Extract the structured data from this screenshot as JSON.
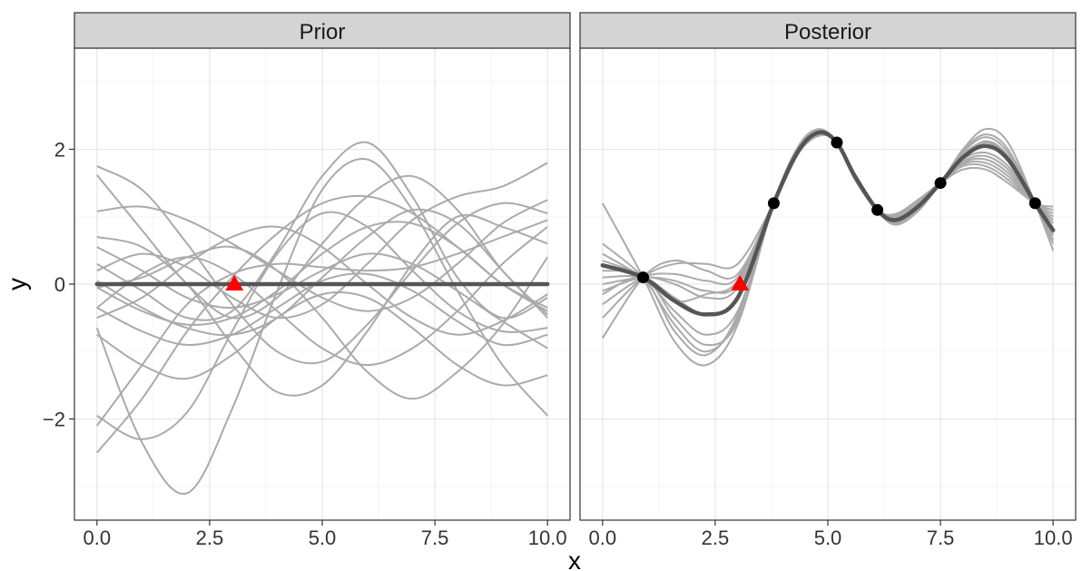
{
  "chart_data": {
    "type": "line",
    "xlabel": "x",
    "ylabel": "y",
    "xlim": [
      -0.5,
      10.5
    ],
    "ylim": [
      -3.5,
      3.5
    ],
    "x_ticks": [
      {
        "value": 0.0,
        "label": "0.0"
      },
      {
        "value": 2.5,
        "label": "2.5"
      },
      {
        "value": 5.0,
        "label": "5.0"
      },
      {
        "value": 7.5,
        "label": "7.5"
      },
      {
        "value": 10.0,
        "label": "10.0"
      }
    ],
    "y_ticks": [
      {
        "value": -2,
        "label": "−2"
      },
      {
        "value": 0,
        "label": "0"
      },
      {
        "value": 2,
        "label": "2"
      }
    ],
    "grid": true,
    "colors": {
      "samples": "#aaaaaa",
      "mean": "#555555",
      "candidate": "#ff0000",
      "observations": "#000000",
      "strip": "#d4d4d4"
    },
    "panels": [
      {
        "strip": "Prior",
        "sample_x": [
          0,
          1,
          2,
          3,
          4,
          5,
          6,
          7,
          8,
          9,
          10
        ],
        "samples": [
          [
            1.75,
            1.4,
            0.6,
            -0.3,
            -1.0,
            -1.15,
            -0.6,
            0.2,
            0.9,
            1.2,
            1.05
          ],
          [
            1.62,
            0.8,
            0.0,
            -0.5,
            -0.2,
            0.6,
            1.3,
            1.6,
            1.1,
            0.2,
            -0.45
          ],
          [
            1.08,
            1.15,
            0.95,
            0.6,
            0.2,
            -0.2,
            -0.4,
            -0.2,
            0.3,
            0.9,
            1.25
          ],
          [
            0.7,
            0.55,
            0.0,
            -0.9,
            -1.6,
            -1.5,
            -0.7,
            0.3,
            1.0,
            0.85,
            0.6
          ],
          [
            0.3,
            -0.1,
            -0.5,
            -0.4,
            0.5,
            1.6,
            2.1,
            1.3,
            0.1,
            -0.5,
            -0.2
          ],
          [
            0.2,
            0.45,
            0.25,
            -0.2,
            -0.5,
            -0.3,
            0.3,
            0.95,
            1.3,
            1.45,
            1.8
          ],
          [
            0.05,
            -0.35,
            -0.65,
            -0.75,
            -0.5,
            0.1,
            0.7,
            1.1,
            0.9,
            0.2,
            -0.5
          ],
          [
            -0.05,
            0.1,
            0.4,
            0.55,
            0.2,
            -0.5,
            -1.3,
            -1.7,
            -1.3,
            -0.6,
            0.4
          ],
          [
            -0.35,
            -0.7,
            -0.9,
            -0.75,
            -0.35,
            0.05,
            0.15,
            -0.1,
            -0.55,
            -0.9,
            -0.75
          ],
          [
            -0.5,
            -0.2,
            0.3,
            0.7,
            0.85,
            0.55,
            0.0,
            -0.5,
            -0.75,
            -0.55,
            -0.15
          ],
          [
            -0.75,
            -1.2,
            -1.4,
            -1.05,
            -0.5,
            -0.15,
            -0.2,
            -0.65,
            -1.2,
            -1.5,
            -1.35
          ],
          [
            -0.35,
            0.15,
            0.4,
            0.15,
            -0.4,
            -0.95,
            -1.2,
            -0.95,
            -0.4,
            0.3,
            0.85
          ],
          [
            -1.95,
            -2.3,
            -1.9,
            -0.7,
            0.45,
            1.05,
            0.85,
            0.2,
            -0.4,
            -0.7,
            -0.65
          ],
          [
            -2.1,
            -1.2,
            -0.3,
            0.15,
            0.3,
            0.25,
            0.2,
            0.25,
            0.45,
            0.7,
            0.95
          ],
          [
            -2.5,
            -1.7,
            -0.7,
            0.1,
            0.75,
            1.2,
            1.3,
            1.05,
            0.55,
            0.0,
            -0.4
          ],
          [
            -0.65,
            -2.35,
            -3.1,
            -1.85,
            -0.1,
            1.4,
            1.85,
            1.1,
            -0.1,
            -1.2,
            -1.95
          ],
          [
            -0.05,
            -0.4,
            -0.6,
            -0.5,
            -0.1,
            0.45,
            0.85,
            0.9,
            0.55,
            0.0,
            -0.35
          ],
          [
            0.55,
            0.2,
            -0.2,
            -0.35,
            -0.15,
            0.2,
            0.45,
            0.3,
            -0.1,
            -0.55,
            -0.95
          ]
        ],
        "mean_x": [
          0,
          10
        ],
        "mean_y": [
          0,
          0
        ],
        "candidate": {
          "x": 3.05,
          "y": 0.0
        },
        "observations": []
      },
      {
        "strip": "Posterior",
        "sample_x": [
          0,
          0.9,
          1.6,
          2.3,
          3.0,
          3.8,
          4.35,
          4.8,
          5.2,
          5.6,
          6.1,
          6.5,
          7.0,
          7.5,
          8.0,
          8.5,
          9.0,
          9.6,
          10.0
        ],
        "samples": [
          [
            1.2,
            0.1,
            -0.85,
            -1.2,
            -0.6,
            1.2,
            2.05,
            2.3,
            2.1,
            1.6,
            1.1,
            0.9,
            1.1,
            1.5,
            2.0,
            2.3,
            2.1,
            1.2,
            0.5
          ],
          [
            0.6,
            0.1,
            -0.6,
            -1.0,
            -0.5,
            1.2,
            2.0,
            2.28,
            2.1,
            1.62,
            1.1,
            0.92,
            1.12,
            1.5,
            1.95,
            2.18,
            1.95,
            1.2,
            0.65
          ],
          [
            0.35,
            0.1,
            -0.4,
            -0.75,
            -0.4,
            1.2,
            1.98,
            2.26,
            2.1,
            1.6,
            1.1,
            0.95,
            1.15,
            1.5,
            1.9,
            2.05,
            1.85,
            1.2,
            0.8
          ],
          [
            0.1,
            0.1,
            -0.2,
            -0.45,
            -0.2,
            1.2,
            1.97,
            2.25,
            2.1,
            1.58,
            1.1,
            0.97,
            1.18,
            1.5,
            1.85,
            1.95,
            1.75,
            1.2,
            0.9
          ],
          [
            -0.1,
            0.1,
            0.0,
            -0.2,
            -0.05,
            1.2,
            1.96,
            2.24,
            2.1,
            1.57,
            1.1,
            1.0,
            1.2,
            1.5,
            1.8,
            1.85,
            1.65,
            1.2,
            1.0
          ],
          [
            -0.3,
            0.1,
            0.15,
            0.05,
            0.1,
            1.2,
            1.95,
            2.22,
            2.1,
            1.56,
            1.1,
            1.02,
            1.22,
            1.5,
            1.75,
            1.75,
            1.55,
            1.2,
            1.1
          ],
          [
            -0.5,
            0.1,
            0.3,
            0.3,
            0.3,
            1.2,
            1.94,
            2.2,
            2.1,
            1.55,
            1.1,
            1.04,
            1.25,
            1.5,
            1.7,
            1.7,
            1.5,
            1.2,
            1.15
          ],
          [
            -0.8,
            0.1,
            0.35,
            0.2,
            0.15,
            1.2,
            1.97,
            2.23,
            2.1,
            1.6,
            1.1,
            0.93,
            1.15,
            1.5,
            1.88,
            2.12,
            1.9,
            1.2,
            0.75
          ],
          [
            0.2,
            0.1,
            -0.7,
            -1.05,
            -0.45,
            1.2,
            2.02,
            2.27,
            2.1,
            1.63,
            1.1,
            0.88,
            1.08,
            1.5,
            1.98,
            2.22,
            2.0,
            1.2,
            0.6
          ],
          [
            0.45,
            0.1,
            -0.25,
            -0.15,
            0.05,
            1.2,
            1.95,
            2.24,
            2.1,
            1.59,
            1.1,
            0.96,
            1.16,
            1.5,
            1.82,
            1.9,
            1.7,
            1.2,
            0.95
          ],
          [
            -0.15,
            0.1,
            -0.5,
            -0.9,
            -0.55,
            1.2,
            1.99,
            2.27,
            2.1,
            1.61,
            1.1,
            0.94,
            1.14,
            1.5,
            1.92,
            2.1,
            1.88,
            1.2,
            0.72
          ],
          [
            0.0,
            0.1,
            0.05,
            -0.1,
            0.0,
            1.2,
            1.96,
            2.24,
            2.1,
            1.58,
            1.1,
            0.98,
            1.19,
            1.5,
            1.78,
            1.8,
            1.6,
            1.2,
            1.05
          ]
        ],
        "mean_x": [
          0,
          0.9,
          1.6,
          2.3,
          3.0,
          3.8,
          4.35,
          4.8,
          5.2,
          5.6,
          6.1,
          6.5,
          7.0,
          7.5,
          8.0,
          8.5,
          9.0,
          9.6,
          10.0
        ],
        "mean_y": [
          0.28,
          0.1,
          -0.25,
          -0.45,
          -0.2,
          1.2,
          1.98,
          2.25,
          2.1,
          1.6,
          1.1,
          0.95,
          1.15,
          1.5,
          1.88,
          2.05,
          1.85,
          1.2,
          0.8
        ],
        "candidate": {
          "x": 3.05,
          "y": 0.0
        },
        "observations": [
          {
            "x": 0.9,
            "y": 0.1
          },
          {
            "x": 3.8,
            "y": 1.2
          },
          {
            "x": 5.2,
            "y": 2.1
          },
          {
            "x": 6.1,
            "y": 1.1
          },
          {
            "x": 7.5,
            "y": 1.5
          },
          {
            "x": 9.6,
            "y": 1.2
          }
        ]
      }
    ]
  }
}
